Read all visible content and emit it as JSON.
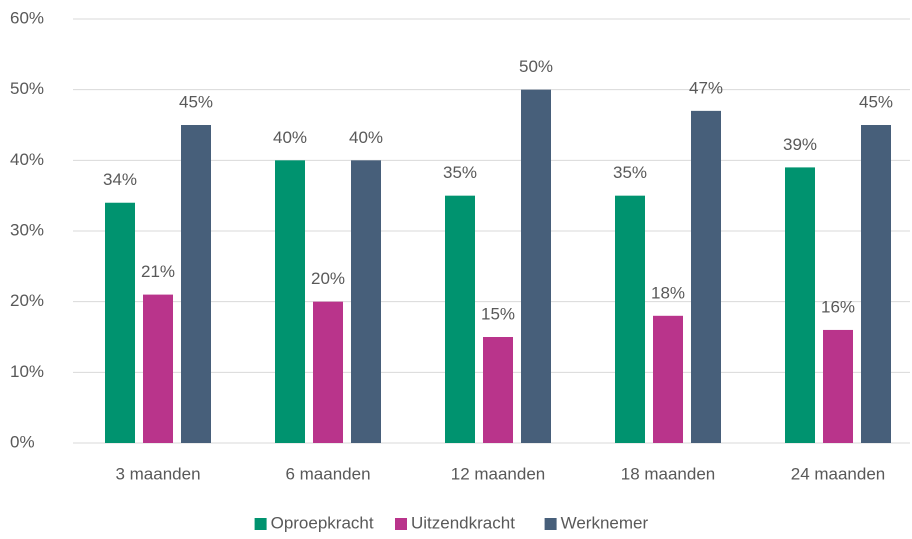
{
  "chart_data": {
    "type": "bar",
    "categories": [
      "3 maanden",
      "6 maanden",
      "12 maanden",
      "18 maanden",
      "24 maanden"
    ],
    "series": [
      {
        "name": "Oproepkracht",
        "color": "#00936f",
        "values": [
          34,
          40,
          35,
          35,
          39
        ],
        "value_labels": [
          "34%",
          "40%",
          "35%",
          "35%",
          "39%"
        ]
      },
      {
        "name": "Uitzendkracht",
        "color": "#b9348b",
        "values": [
          21,
          20,
          15,
          18,
          16
        ],
        "value_labels": [
          "21%",
          "20%",
          "15%",
          "18%",
          "16%"
        ]
      },
      {
        "name": "Werknemer",
        "color": "#475f7a",
        "values": [
          45,
          40,
          50,
          47,
          45
        ],
        "value_labels": [
          "45%",
          "40%",
          "50%",
          "47%",
          "45%"
        ]
      }
    ],
    "ylim": [
      0,
      60
    ],
    "yticks": [
      {
        "value": 0,
        "label": "0%"
      },
      {
        "value": 10,
        "label": "10%"
      },
      {
        "value": 20,
        "label": "20%"
      },
      {
        "value": 30,
        "label": "30%"
      },
      {
        "value": 40,
        "label": "40%"
      },
      {
        "value": 50,
        "label": "50%"
      },
      {
        "value": 60,
        "label": "60%"
      }
    ],
    "grid": true,
    "legend": "bottom"
  }
}
